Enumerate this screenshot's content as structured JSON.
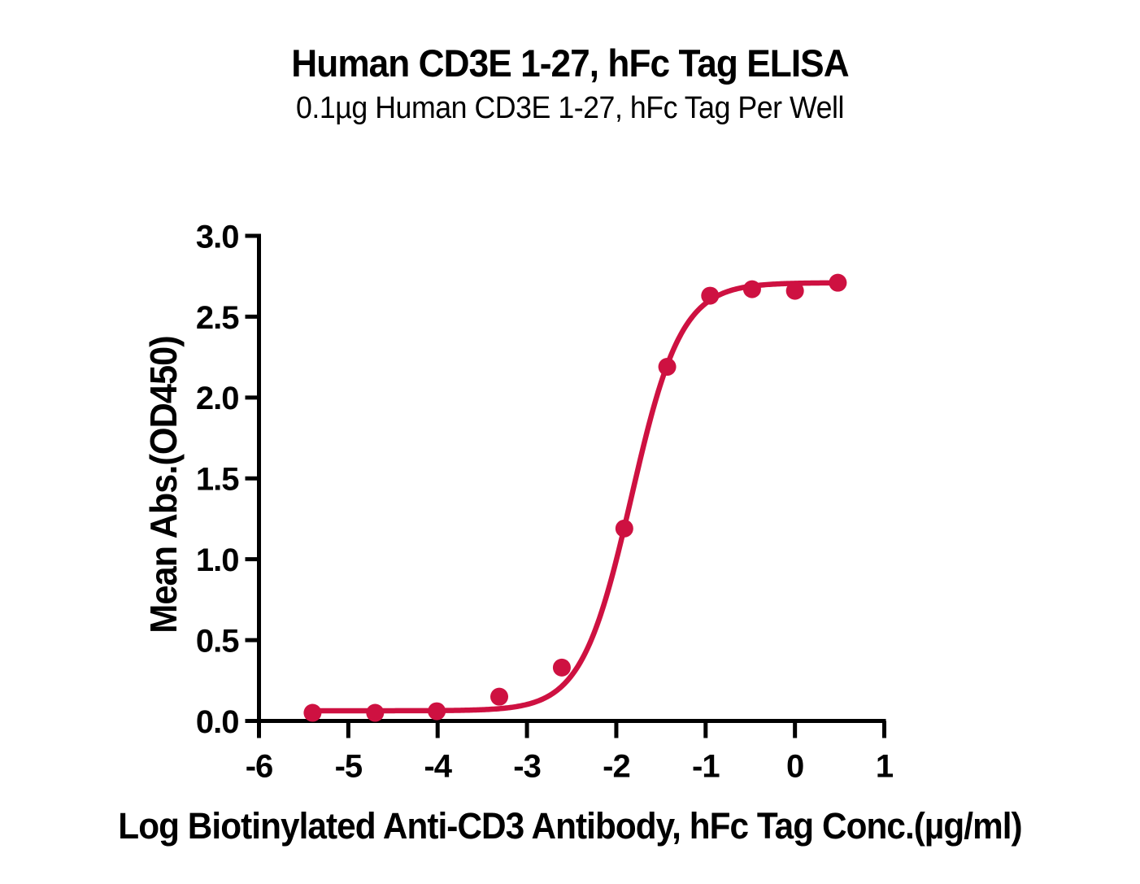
{
  "chart_data": {
    "type": "scatter",
    "title": "Human CD3E 1-27, hFc Tag ELISA",
    "subtitle": "0.1µg Human CD3E 1-27, hFc Tag Per Well",
    "xlabel": "Log Biotinylated Anti-CD3 Antibody, hFc Tag Conc.(µg/ml)",
    "ylabel": "Mean Abs.(OD450)",
    "xlim": [
      -6,
      1
    ],
    "ylim": [
      0,
      3
    ],
    "x_ticks": [
      -6,
      -5,
      -4,
      -3,
      -2,
      -1,
      0,
      1
    ],
    "x_tick_labels": [
      "-6",
      "-5",
      "-4",
      "-3",
      "-2",
      "-1",
      "0",
      "1"
    ],
    "y_ticks": [
      0,
      0.5,
      1,
      1.5,
      2,
      2.5,
      3
    ],
    "y_tick_labels": [
      "0.0",
      "0.5",
      "1.0",
      "1.5",
      "2.0",
      "2.5",
      "3.0"
    ],
    "grid": false,
    "legend": "none",
    "series": [
      {
        "name": "Biotinylated Anti-CD3 Antibody, hFc Tag",
        "marker": "circle",
        "marker_radius_px": 11,
        "points": [
          {
            "x": -5.4,
            "y": 0.05
          },
          {
            "x": -4.7,
            "y": 0.05
          },
          {
            "x": -4.01,
            "y": 0.06
          },
          {
            "x": -3.31,
            "y": 0.15
          },
          {
            "x": -2.61,
            "y": 0.33
          },
          {
            "x": -1.91,
            "y": 1.19
          },
          {
            "x": -1.43,
            "y": 2.19
          },
          {
            "x": -0.95,
            "y": 2.63
          },
          {
            "x": -0.48,
            "y": 2.67
          },
          {
            "x": 0.0,
            "y": 2.66
          },
          {
            "x": 0.48,
            "y": 2.71
          }
        ]
      }
    ],
    "curve_fit": {
      "model": "4PL sigmoidal dose-response",
      "bottom": 0.063,
      "top": 2.71,
      "log_ec50": -1.83,
      "hill_slope": 1.56,
      "x_start": -5.4,
      "x_end": 0.48
    },
    "colors": {
      "curve": "#CE1141",
      "marker": "#CE1141",
      "axis": "#000000",
      "text": "#000000",
      "background": "#ffffff"
    }
  }
}
